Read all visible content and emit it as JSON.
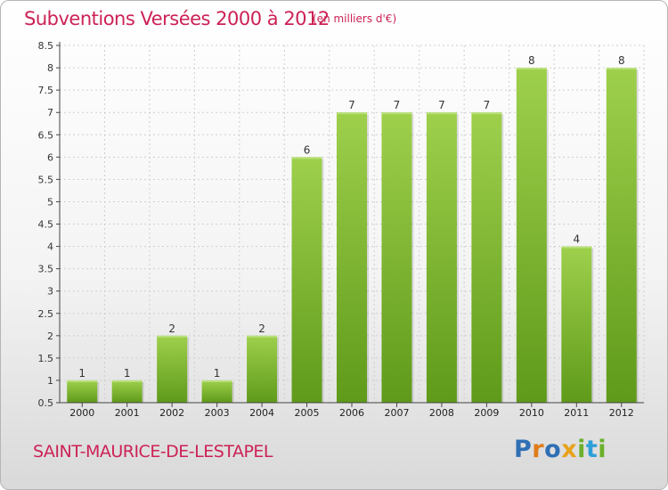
{
  "header": {
    "title": "Subventions Versées 2000 à 2012",
    "subtitle": "(en milliers d'€)"
  },
  "footer": {
    "place_name": "SAINT-MAURICE-DE-LESTAPEL",
    "logo_letters": [
      {
        "ch": "P",
        "color": "#2f6fb5"
      },
      {
        "ch": "r",
        "color": "#e07b1a"
      },
      {
        "ch": "o",
        "color": "#2f6fb5"
      },
      {
        "ch": "x",
        "color": "#e8a21a"
      },
      {
        "ch": "i",
        "color": "#6ab02a"
      },
      {
        "ch": "t",
        "color": "#2f9fd8"
      },
      {
        "ch": "i",
        "color": "#6ab02a"
      }
    ]
  },
  "colors": {
    "title": "#cc2255",
    "bar_top": "#9ed04c",
    "bar_bottom": "#5f9a1a",
    "axis": "#444444",
    "grid": "#cfcfcf"
  },
  "chart_data": {
    "type": "bar",
    "categories": [
      "2000",
      "2001",
      "2002",
      "2003",
      "2004",
      "2005",
      "2006",
      "2007",
      "2008",
      "2009",
      "2010",
      "2011",
      "2012"
    ],
    "values": [
      1,
      1,
      2,
      1,
      2,
      6,
      7,
      7,
      7,
      7,
      8,
      4,
      8
    ],
    "data_labels": [
      "1",
      "1",
      "2",
      "1",
      "2",
      "6",
      "7",
      "7",
      "7",
      "7",
      "8",
      "4",
      "8"
    ],
    "ylim": [
      0.5,
      8.5
    ],
    "yticks": [
      0.5,
      1,
      1.5,
      2,
      2.5,
      3,
      3.5,
      4,
      4.5,
      5,
      5.5,
      6,
      6.5,
      7,
      7.5,
      8,
      8.5
    ],
    "ytick_labels": [
      "0.5",
      "1",
      "1.5",
      "2",
      "2.5",
      "3",
      "3.5",
      "4",
      "4.5",
      "5",
      "5.5",
      "6",
      "6.5",
      "7",
      "7.5",
      "8",
      "8.5"
    ],
    "grid": true,
    "title": "Subventions Versées 2000 à 2012",
    "xlabel": "",
    "ylabel": ""
  }
}
